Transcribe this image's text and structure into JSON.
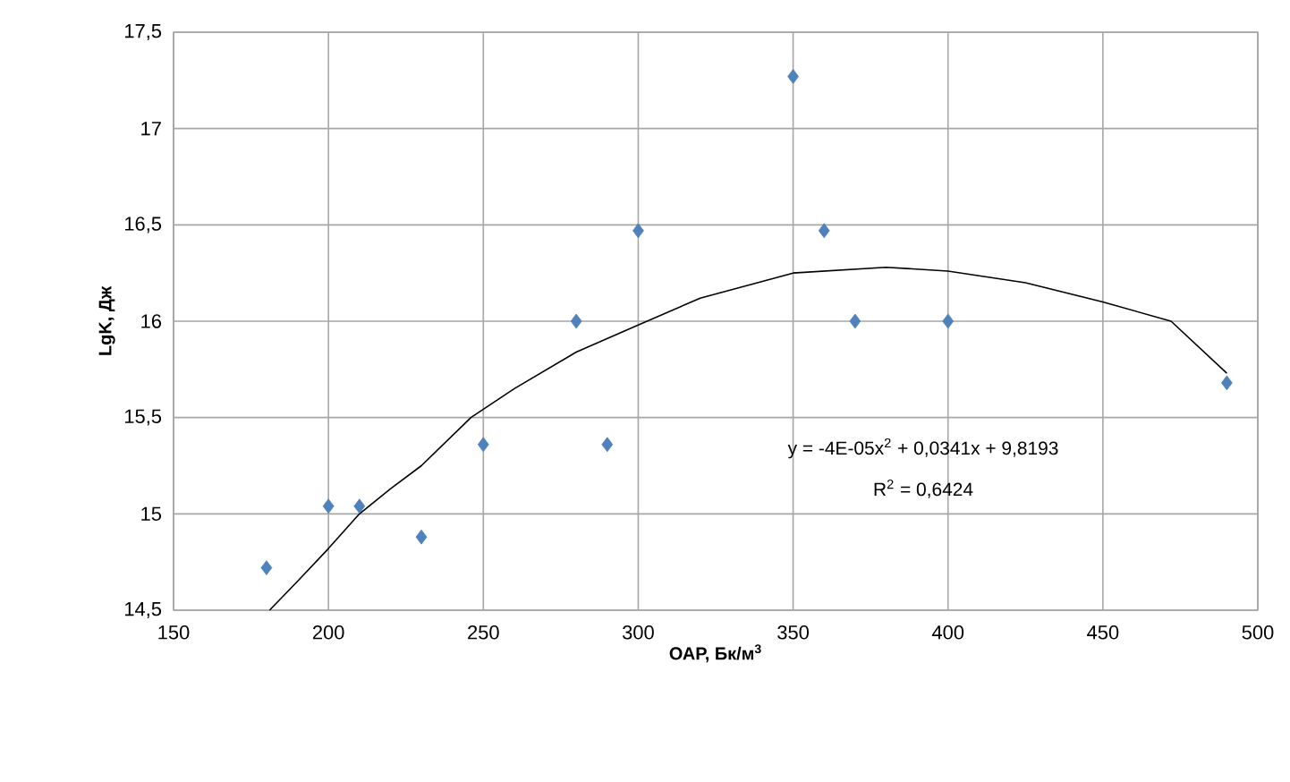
{
  "chart_data": {
    "type": "scatter",
    "xlabel": "ОАР, Бк/м$^{3}$",
    "ylabel": "LgK, Дж",
    "xlim": [
      150,
      500
    ],
    "xticks": [
      150,
      200,
      250,
      300,
      350,
      400,
      450,
      500
    ],
    "ylim": [
      14.5,
      17.5
    ],
    "yticks": [
      {
        "value": 14.5,
        "label": "14,5"
      },
      15,
      {
        "value": 15.5,
        "label": "15,5"
      },
      16,
      {
        "value": 16.5,
        "label": "16,5"
      },
      17,
      {
        "value": 17.5,
        "label": "17,5"
      }
    ],
    "grid": true,
    "series": [
      {
        "color": "#4f81bd",
        "marker": "diamond",
        "x": [
          180,
          200,
          210,
          230,
          250,
          280,
          290,
          300,
          350,
          360,
          370,
          400,
          490
        ],
        "values": [
          14.72,
          15.04,
          15.04,
          14.88,
          15.36,
          16.0,
          15.36,
          16.47,
          17.27,
          16.47,
          16.0,
          16.0,
          15.68
        ]
      },
      {
        "type": "line",
        "color": "#000000",
        "marker": "none",
        "line_style": "solid",
        "x": [
          181,
          190,
          200,
          210,
          220,
          230,
          246,
          260,
          280,
          300,
          320,
          350,
          380,
          400,
          425,
          450,
          472,
          490
        ],
        "values": [
          14.5,
          14.65,
          14.82,
          15.0,
          15.13,
          15.25,
          15.5,
          15.65,
          15.84,
          15.98,
          16.12,
          16.25,
          16.28,
          16.26,
          16.2,
          16.1,
          16.0,
          15.73
        ]
      }
    ],
    "annotations": [
      "y = -4E-05x$^{2}$ + 0,0341x + 9,8193",
      "R$^{2}$ = 0,6424"
    ]
  }
}
